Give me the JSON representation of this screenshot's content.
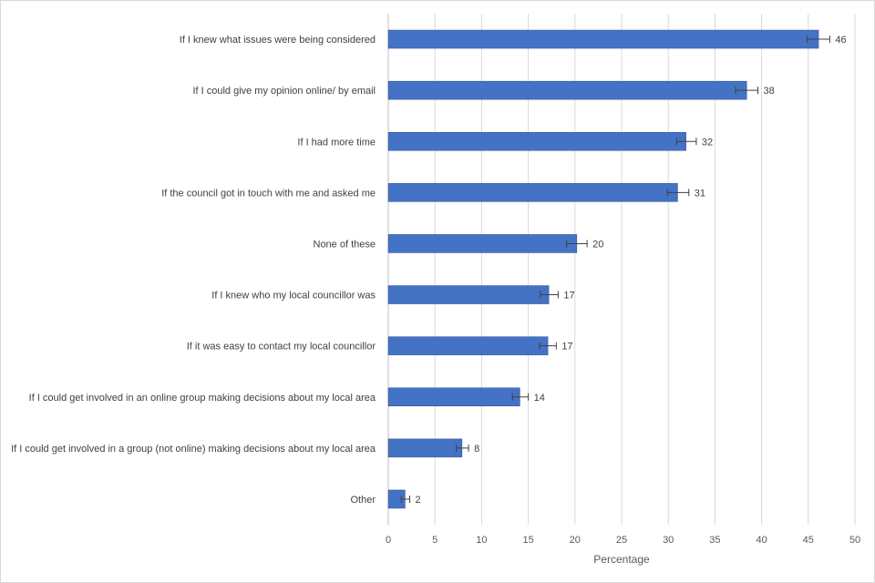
{
  "chart_data": {
    "type": "bar",
    "orientation": "horizontal",
    "title": "",
    "xlabel": "Percentage",
    "ylabel": "",
    "xlim": [
      0,
      50
    ],
    "x_ticks": [
      0,
      5,
      10,
      15,
      20,
      25,
      30,
      35,
      40,
      45,
      50
    ],
    "grid": "vertical",
    "bar_color": "#4472c4",
    "categories": [
      "If I knew what issues were being considered",
      "If I could give my opinion online/ by email",
      "If I had more time",
      "If the council got in touch with me and asked me",
      "None of these",
      "If I knew who my local councillor was",
      "If it was easy to contact my local councillor",
      "If I could get involved in an online group making decisions about my local area",
      "If I could get involved in a group (not online) making decisions about my local area",
      "Other"
    ],
    "values": [
      46.1,
      38.4,
      31.9,
      31.0,
      20.2,
      17.2,
      17.1,
      14.1,
      7.9,
      1.8
    ],
    "data_labels": [
      "46",
      "38",
      "32",
      "31",
      "20",
      "17",
      "17",
      "14",
      "8",
      "2"
    ],
    "error_bars": [
      [
        44.9,
        47.3
      ],
      [
        37.2,
        39.6
      ],
      [
        30.9,
        33.0
      ],
      [
        29.9,
        32.2
      ],
      [
        19.1,
        21.3
      ],
      [
        16.3,
        18.2
      ],
      [
        16.2,
        18.0
      ],
      [
        13.3,
        15.0
      ],
      [
        7.3,
        8.6
      ],
      [
        1.4,
        2.3
      ]
    ]
  }
}
